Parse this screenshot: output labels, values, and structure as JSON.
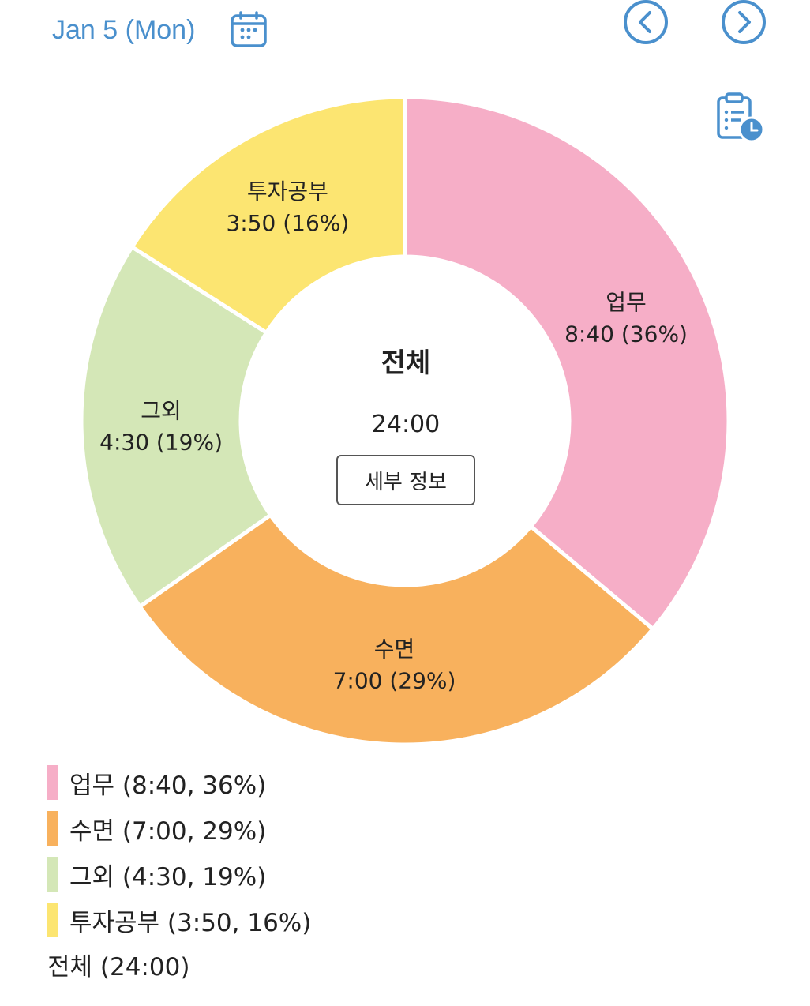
{
  "header": {
    "date": "Jan 5 (Mon)",
    "accent_color": "#4a90cd",
    "icons": [
      "calendar-icon",
      "chevron-left-icon",
      "chevron-right-icon",
      "report-clock-icon"
    ]
  },
  "center": {
    "title": "전체",
    "total": "24:00",
    "detail_button": "세부 정보"
  },
  "chart_data": {
    "type": "pie",
    "donut": true,
    "slices": [
      {
        "name": "업무",
        "duration": "8:40",
        "percent": 36,
        "minutes": 520,
        "color": "#f6aec7",
        "label": "8:40 (36%)",
        "legend": "업무 (8:40, 36%)"
      },
      {
        "name": "수면",
        "duration": "7:00",
        "percent": 29,
        "minutes": 420,
        "color": "#f8b15d",
        "label": "7:00 (29%)",
        "legend": "수면 (7:00, 29%)"
      },
      {
        "name": "그외",
        "duration": "4:30",
        "percent": 19,
        "minutes": 270,
        "color": "#d4e7b7",
        "label": "4:30 (19%)",
        "legend": "그외 (4:30, 19%)"
      },
      {
        "name": "투자공부",
        "duration": "3:50",
        "percent": 16,
        "minutes": 230,
        "color": "#fce571",
        "label": "3:50 (16%)",
        "legend": "투자공부 (3:50, 16%)"
      }
    ]
  },
  "legend": {
    "total_line": "전체 (24:00)"
  }
}
